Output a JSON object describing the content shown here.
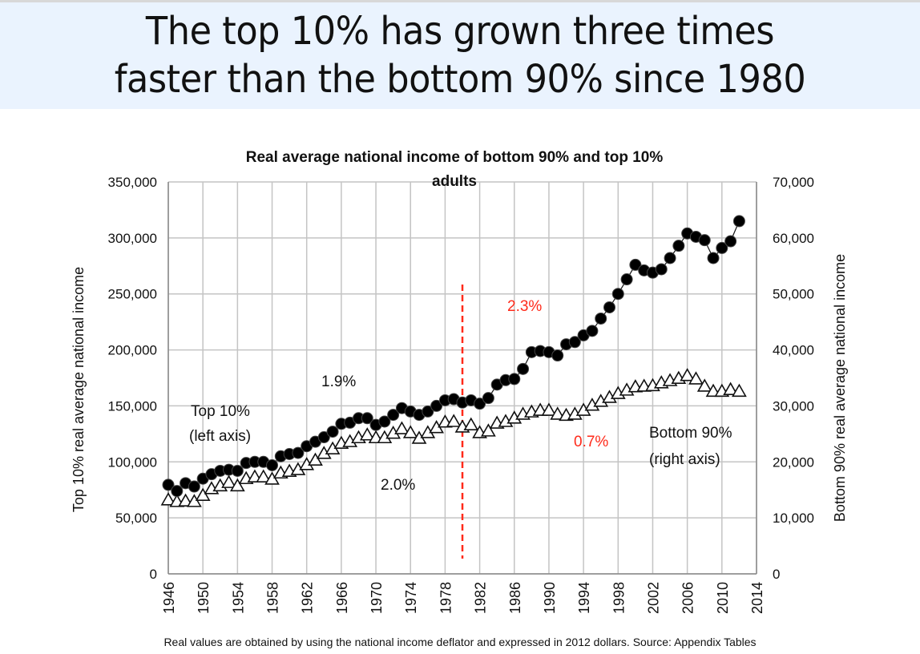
{
  "slide": {
    "title_line1": "The top 10% has grown three times",
    "title_line2": "faster than the bottom 90% since 1980",
    "banner_color": "#eaf3fe",
    "footnote": "Real values are obtained by using the national income deflator and expressed in 2012 dollars. Source: Appendix Tables"
  },
  "chart_data": {
    "type": "line",
    "title_line1": "Real average national income of bottom 90% and top 10%",
    "title_line2": "adults",
    "xlabel": "",
    "ylabel_left": "Top 10% real average national income",
    "ylabel_right": "Bottom 90% real average national income",
    "xlim": [
      1946,
      2014
    ],
    "ylim_left": [
      0,
      350000
    ],
    "ylim_right": [
      0,
      70000
    ],
    "x_ticks": [
      1946,
      1950,
      1954,
      1958,
      1962,
      1966,
      1970,
      1974,
      1978,
      1982,
      1986,
      1990,
      1994,
      1998,
      2002,
      2006,
      2010,
      2014
    ],
    "y_ticks_left": [
      "0",
      "50,000",
      "100,000",
      "150,000",
      "200,000",
      "250,000",
      "300,000",
      "350,000"
    ],
    "y_ticks_right": [
      "0",
      "10,000",
      "20,000",
      "30,000",
      "40,000",
      "50,000",
      "60,000",
      "70,000"
    ],
    "grid": true,
    "vertical_marker": {
      "x": 1980,
      "color": "#ff2a1a",
      "style": "dashed"
    },
    "x": [
      1946,
      1947,
      1948,
      1949,
      1950,
      1951,
      1952,
      1953,
      1954,
      1955,
      1956,
      1957,
      1958,
      1959,
      1960,
      1961,
      1962,
      1963,
      1964,
      1965,
      1966,
      1967,
      1968,
      1969,
      1970,
      1971,
      1972,
      1973,
      1974,
      1975,
      1976,
      1977,
      1978,
      1979,
      1980,
      1981,
      1982,
      1983,
      1984,
      1985,
      1986,
      1987,
      1988,
      1989,
      1990,
      1991,
      1992,
      1993,
      1994,
      1995,
      1996,
      1997,
      1998,
      1999,
      2000,
      2001,
      2002,
      2003,
      2004,
      2005,
      2006,
      2007,
      2008,
      2009,
      2010,
      2011,
      2012
    ],
    "series": [
      {
        "name": "Top 10%",
        "axis": "left",
        "marker": "filled-circle",
        "values": [
          79500,
          74000,
          81000,
          78000,
          85000,
          89000,
          92000,
          93000,
          92000,
          99000,
          100000,
          100000,
          97000,
          105000,
          107000,
          108000,
          114000,
          118000,
          122000,
          127000,
          134000,
          135000,
          139000,
          139000,
          133000,
          136000,
          142000,
          148000,
          145000,
          142000,
          145000,
          150000,
          155000,
          156000,
          153000,
          155000,
          152000,
          157000,
          169000,
          173000,
          174000,
          183000,
          198000,
          199000,
          198000,
          195000,
          205000,
          207000,
          213000,
          217000,
          228000,
          238000,
          250000,
          263000,
          276000,
          271000,
          269000,
          272000,
          282000,
          293000,
          304000,
          301000,
          298000,
          282000,
          291000,
          297000,
          315000
        ]
      },
      {
        "name": "Bottom 90%",
        "axis": "right",
        "marker": "open-triangle",
        "values": [
          13200,
          12900,
          13000,
          12900,
          14000,
          15200,
          15700,
          16300,
          15700,
          17000,
          17300,
          17300,
          16900,
          18000,
          18300,
          18600,
          19500,
          20300,
          21500,
          22300,
          23300,
          23600,
          24300,
          24800,
          24300,
          24300,
          25100,
          25900,
          25200,
          24200,
          25200,
          26100,
          27100,
          27200,
          26200,
          26600,
          25200,
          25500,
          26900,
          27200,
          27800,
          28500,
          28900,
          29200,
          29200,
          28500,
          28300,
          28500,
          29200,
          30100,
          30800,
          31500,
          32200,
          32800,
          33400,
          33500,
          33600,
          34100,
          34500,
          34900,
          35400,
          34800,
          33500,
          32600,
          32600,
          32900,
          32600
        ]
      }
    ],
    "annotations": [
      {
        "id": "top10-label-1",
        "text": "Top 10%",
        "color": "#111111"
      },
      {
        "id": "top10-label-2",
        "text": "(left axis)",
        "color": "#111111"
      },
      {
        "id": "bottom90-label-1",
        "text": "Bottom 90%",
        "color": "#111111"
      },
      {
        "id": "bottom90-label-2",
        "text": "(right axis)",
        "color": "#111111"
      },
      {
        "id": "rate-top-pre1980",
        "text": "1.9%",
        "color": "#111111"
      },
      {
        "id": "rate-bottom-pre1980",
        "text": "2.0%",
        "color": "#111111"
      },
      {
        "id": "rate-top-post1980",
        "text": "2.3%",
        "color": "#ff2a1a"
      },
      {
        "id": "rate-bottom-post1980",
        "text": "0.7%",
        "color": "#ff2a1a"
      }
    ]
  }
}
